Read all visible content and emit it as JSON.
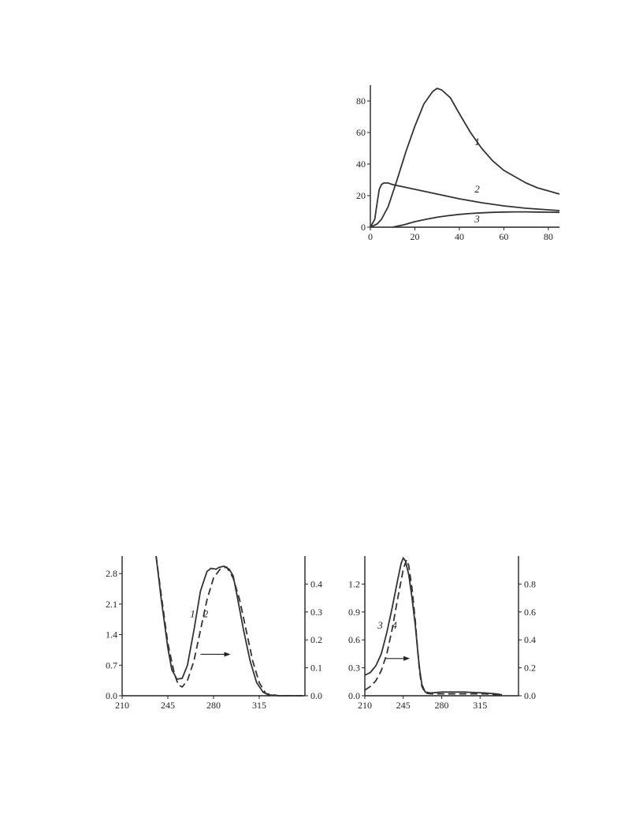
{
  "chart_data": [
    {
      "type": "line",
      "xlim": [
        0,
        85
      ],
      "ylim": [
        0,
        90
      ],
      "xticks": [
        "0",
        "20",
        "40",
        "60",
        "80"
      ],
      "yticks": [
        "0",
        "20",
        "40",
        "60",
        "80"
      ],
      "series": [
        {
          "name": "1",
          "style": "solid",
          "x": [
            0,
            3,
            5,
            8,
            12,
            16,
            20,
            24,
            28,
            30,
            32,
            36,
            40,
            45,
            50,
            55,
            60,
            65,
            70,
            75,
            80,
            85
          ],
          "y": [
            0,
            2,
            5,
            13,
            30,
            48,
            64,
            78,
            86,
            88,
            87,
            82,
            72,
            60,
            50,
            42,
            36,
            32,
            28,
            25,
            23,
            21
          ]
        },
        {
          "name": "2",
          "style": "solid",
          "x": [
            0,
            2,
            3,
            4,
            5,
            6,
            8,
            10,
            15,
            20,
            30,
            40,
            50,
            60,
            70,
            80,
            85
          ],
          "y": [
            0,
            5,
            15,
            24,
            27,
            28,
            28,
            27,
            25.5,
            24,
            21,
            18,
            15.5,
            13.5,
            12,
            11,
            10.5
          ]
        },
        {
          "name": "3",
          "style": "solid",
          "x": [
            10,
            15,
            20,
            25,
            30,
            35,
            40,
            45,
            50,
            55,
            60,
            65,
            70,
            75,
            80,
            85
          ],
          "y": [
            0,
            1.5,
            3.5,
            5,
            6.3,
            7.3,
            8.1,
            8.7,
            9.1,
            9.4,
            9.6,
            9.7,
            9.7,
            9.6,
            9.5,
            9.4
          ]
        }
      ],
      "labels": [
        {
          "text": "1",
          "x": 48,
          "y": 52
        },
        {
          "text": "2",
          "x": 48,
          "y": 22
        },
        {
          "text": "3",
          "x": 48,
          "y": 3
        }
      ]
    },
    {
      "type": "line",
      "xlim": [
        210,
        350
      ],
      "ylim": [
        0,
        3.2
      ],
      "ylim_right": [
        0,
        0.5
      ],
      "xticks": [
        "210",
        "245",
        "280",
        "315"
      ],
      "yticks": [
        "0.0",
        "0.7",
        "1.4",
        "2.1",
        "2.8"
      ],
      "yticks_right": [
        "0.0",
        "0.1",
        "0.2",
        "0.3",
        "0.4"
      ],
      "series": [
        {
          "name": "1",
          "style": "solid",
          "x": [
            236,
            240,
            245,
            248,
            252,
            256,
            260,
            265,
            270,
            275,
            278,
            282,
            284,
            288,
            292,
            295,
            298,
            303,
            308,
            313,
            318,
            322,
            330,
            340,
            348
          ],
          "y": [
            3.2,
            2.2,
            1.1,
            0.6,
            0.38,
            0.4,
            0.7,
            1.5,
            2.4,
            2.85,
            2.92,
            2.9,
            2.94,
            2.97,
            2.9,
            2.75,
            2.3,
            1.5,
            0.8,
            0.3,
            0.08,
            0.02,
            0.0,
            0.0,
            0.0
          ]
        },
        {
          "name": "2",
          "style": "dashed",
          "x": [
            236,
            240,
            245,
            250,
            253,
            256,
            260,
            265,
            270,
            275,
            280,
            285,
            290,
            295,
            300,
            305,
            310,
            315,
            320,
            330,
            340,
            348
          ],
          "y": [
            3.2,
            2.3,
            1.2,
            0.5,
            0.25,
            0.2,
            0.35,
            0.8,
            1.5,
            2.2,
            2.7,
            2.9,
            2.95,
            2.7,
            2.2,
            1.5,
            0.8,
            0.3,
            0.05,
            0.0,
            0.0,
            0.0
          ]
        }
      ],
      "labels": [
        {
          "text": "1",
          "x": 264,
          "y": 1.8
        },
        {
          "text": "2",
          "x": 274,
          "y": 1.8
        }
      ],
      "arrow": {
        "x1": 270,
        "x2": 293,
        "y": 0.95
      }
    },
    {
      "type": "line",
      "xlim": [
        210,
        350
      ],
      "ylim": [
        0,
        1.5
      ],
      "ylim_right": [
        0,
        1.0
      ],
      "xticks": [
        "210",
        "245",
        "280",
        "315"
      ],
      "yticks": [
        "0.0",
        "0.3",
        "0.6",
        "0.9",
        "1.2"
      ],
      "yticks_right": [
        "0.0",
        "0.2",
        "0.4",
        "0.6",
        "0.8"
      ],
      "series": [
        {
          "name": "3",
          "style": "solid",
          "x": [
            210,
            215,
            220,
            225,
            230,
            235,
            240,
            243,
            245,
            247,
            250,
            253,
            256,
            258,
            260,
            262,
            265,
            270,
            280,
            290,
            300,
            310,
            320,
            330,
            335
          ],
          "y": [
            0.22,
            0.25,
            0.32,
            0.45,
            0.68,
            0.95,
            1.25,
            1.42,
            1.48,
            1.45,
            1.3,
            1.05,
            0.75,
            0.5,
            0.28,
            0.12,
            0.04,
            0.03,
            0.04,
            0.04,
            0.04,
            0.035,
            0.03,
            0.02,
            0.01
          ]
        },
        {
          "name": "4",
          "style": "dashed",
          "x": [
            210,
            215,
            220,
            225,
            230,
            235,
            240,
            245,
            248,
            250,
            253,
            256,
            258,
            260,
            262,
            265,
            270,
            280,
            290,
            300,
            310,
            320,
            330,
            335
          ],
          "y": [
            0.06,
            0.1,
            0.16,
            0.27,
            0.45,
            0.72,
            1.05,
            1.36,
            1.46,
            1.4,
            1.15,
            0.8,
            0.5,
            0.25,
            0.1,
            0.03,
            0.02,
            0.02,
            0.02,
            0.02,
            0.02,
            0.02,
            0.01,
            0.0
          ]
        }
      ],
      "labels": [
        {
          "text": "3",
          "x": 224,
          "y": 0.72
        },
        {
          "text": "4",
          "x": 237,
          "y": 0.72
        }
      ],
      "arrow": {
        "x1": 229,
        "x2": 251,
        "y": 0.4
      }
    }
  ]
}
